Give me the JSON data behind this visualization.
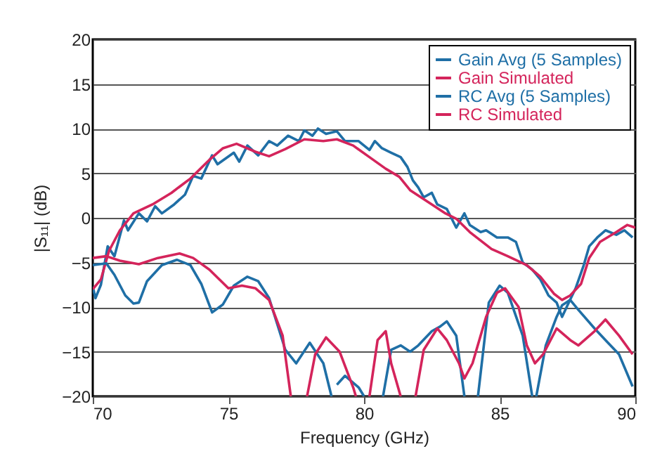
{
  "chart_data": {
    "type": "line",
    "xlabel": "Frequency (GHz)",
    "ylabel": "|S₁₁| (dB)",
    "xlim": [
      70,
      90
    ],
    "xticks": [
      70,
      75,
      80,
      85,
      90
    ],
    "ylim": [
      -20,
      20
    ],
    "yticks": [
      -20,
      -15,
      -10,
      -5,
      0,
      5,
      10,
      15,
      20
    ],
    "grid": "y",
    "legend": "top right",
    "line_style": "solid",
    "series": [
      {
        "name": "Gain Avg (5 Samples)",
        "color": "#1f6fa6",
        "x": [
          70,
          70.1,
          70.3,
          70.55,
          70.8,
          71.15,
          71.3,
          71.7,
          72,
          72.3,
          72.55,
          73,
          73.4,
          73.7,
          74,
          74.4,
          74.6,
          75.2,
          75.4,
          75.7,
          76.1,
          76.5,
          76.8,
          77.2,
          77.6,
          77.8,
          78.1,
          78.3,
          78.6,
          79,
          79.3,
          79.8,
          80.2,
          80.4,
          80.66,
          81,
          81.35,
          81.6,
          81.8,
          82,
          82.2,
          82.5,
          82.7,
          83.05,
          83.4,
          83.7,
          83.9,
          84.3,
          84.5,
          84.9,
          85.3,
          85.6,
          85.85,
          86.2,
          86.5,
          86.8,
          87.1,
          87.3,
          87.5,
          87.8,
          88.1,
          88.3,
          88.6,
          88.9,
          89.3,
          89.6,
          89.9
        ],
        "values": [
          -7.7,
          -9,
          -7.5,
          -3.2,
          -4.3,
          -0.3,
          -1.4,
          0.5,
          -0.4,
          1.3,
          0.5,
          1.5,
          2.6,
          4.7,
          4.4,
          7,
          6,
          7.3,
          6.3,
          8.1,
          7,
          8.6,
          8.1,
          9.2,
          8.6,
          9.8,
          9.2,
          10,
          9.4,
          9.7,
          8.6,
          8.6,
          7.6,
          8.6,
          7.8,
          7.3,
          6.8,
          5.7,
          4.2,
          3.4,
          2.3,
          2.8,
          1.5,
          1,
          -1.1,
          0.5,
          -0.8,
          -1.6,
          -1.4,
          -2.2,
          -2.2,
          -2.7,
          -5,
          -5.8,
          -6.9,
          -8.7,
          -9.5,
          -11.1,
          -9.8,
          -7.9,
          -5.3,
          -3.2,
          -2.2,
          -1.4,
          -1.9,
          -1.4,
          -2.2
        ]
      },
      {
        "name": "Gain Simulated",
        "color": "#d4245b",
        "x": [
          70,
          70.3,
          70.6,
          71,
          71.5,
          72.2,
          72.9,
          73.6,
          74.3,
          74.8,
          75.3,
          76,
          76.5,
          77.1,
          77.8,
          78.5,
          79,
          79.6,
          80.2,
          80.8,
          81.3,
          81.7,
          82.5,
          83,
          83.4,
          83.9,
          84.7,
          85.3,
          86,
          86.5,
          87,
          87.3,
          87.6,
          88,
          88.3,
          88.7,
          89.3,
          89.7,
          90
        ],
        "values": [
          -8,
          -6.9,
          -3.7,
          -1.4,
          0.5,
          1.5,
          2.8,
          4.4,
          6.5,
          7.8,
          8.3,
          7.4,
          6.9,
          7.7,
          8.8,
          8.6,
          8.8,
          8.1,
          6.8,
          5.5,
          4.6,
          3.1,
          1.5,
          0.5,
          -0.1,
          -1.6,
          -3.5,
          -4.3,
          -5.3,
          -6.6,
          -8.5,
          -9.2,
          -8.7,
          -7.4,
          -4.5,
          -2.7,
          -1.6,
          -0.8,
          -1.1
        ]
      },
      {
        "name": "RC Avg (5 Samples)",
        "color": "#1f6fa6",
        "x": [
          70,
          70.5,
          70.8,
          71.2,
          71.5,
          71.7,
          72,
          72.55,
          73.1,
          73.6,
          74,
          74.4,
          74.8,
          75.2,
          75.7,
          76.1,
          76.5,
          77.1,
          77.5,
          78,
          78.5,
          78.8,
          78.9,
          79,
          79.3,
          79.8,
          80,
          80.3,
          80.7,
          81,
          81.35,
          81.7,
          82,
          82.5,
          82.8,
          83.05,
          83.4,
          83.7,
          84.1,
          84.2,
          84.6,
          85,
          85.3,
          85.85,
          86.2,
          86.3,
          86.35,
          86.7,
          87.1,
          87.3,
          87.6,
          87.9,
          88.5,
          88.9,
          89.4,
          89.9
        ],
        "values": [
          -5.3,
          -5.1,
          -6.4,
          -8.7,
          -9.6,
          -9.5,
          -7.1,
          -5.3,
          -4.7,
          -5.3,
          -7.4,
          -10.6,
          -9.7,
          -7.6,
          -6.6,
          -7.1,
          -9,
          -14.8,
          -16.3,
          -14,
          -16.3,
          -20,
          null,
          -18.7,
          -17.7,
          -19,
          -20,
          null,
          -20,
          -14.8,
          -14.3,
          -15,
          -14.3,
          -12.7,
          -12.2,
          -11.6,
          -13.2,
          -20,
          null,
          -20,
          -9.5,
          -7.6,
          -8.4,
          -13.2,
          -20,
          null,
          -20,
          -14.3,
          -11.1,
          -9.8,
          -9.2,
          -10.3,
          -12.4,
          -13.7,
          -15.3,
          -18.9
        ]
      },
      {
        "name": "RC Simulated",
        "color": "#d4245b",
        "x": [
          70,
          70.5,
          71,
          71.7,
          72.4,
          73.2,
          73.7,
          74.3,
          75,
          75.5,
          76,
          76.5,
          77,
          77.3,
          77.6,
          77.9,
          78.2,
          78.6,
          79.1,
          79.6,
          79.7,
          80,
          80.2,
          80.5,
          80.8,
          81,
          81.35,
          81.6,
          81.9,
          82.2,
          82.7,
          83.05,
          83.5,
          83.7,
          84,
          84.5,
          84.9,
          85.2,
          85.7,
          86,
          86.3,
          86.6,
          87.1,
          87.6,
          87.9,
          88.5,
          88.9,
          89.4,
          89.9
        ],
        "values": [
          -4.5,
          -4.3,
          -4.8,
          -5.2,
          -4.5,
          -4,
          -4.5,
          -5.8,
          -7.9,
          -7.6,
          -7.9,
          -9.2,
          -13.2,
          -20,
          null,
          -20,
          -15.3,
          -13.4,
          -15,
          -19,
          -20,
          null,
          -20,
          -13.7,
          -12.7,
          -16.3,
          -20,
          null,
          -20,
          -14.8,
          -12.4,
          -13.7,
          -16.3,
          -18,
          -16.3,
          -11.1,
          -8.4,
          -7.9,
          -10,
          -14.3,
          -16.3,
          -15.3,
          -12.4,
          -13.7,
          -14.3,
          -12.7,
          -11.4,
          -13.2,
          -15.3
        ]
      }
    ]
  }
}
